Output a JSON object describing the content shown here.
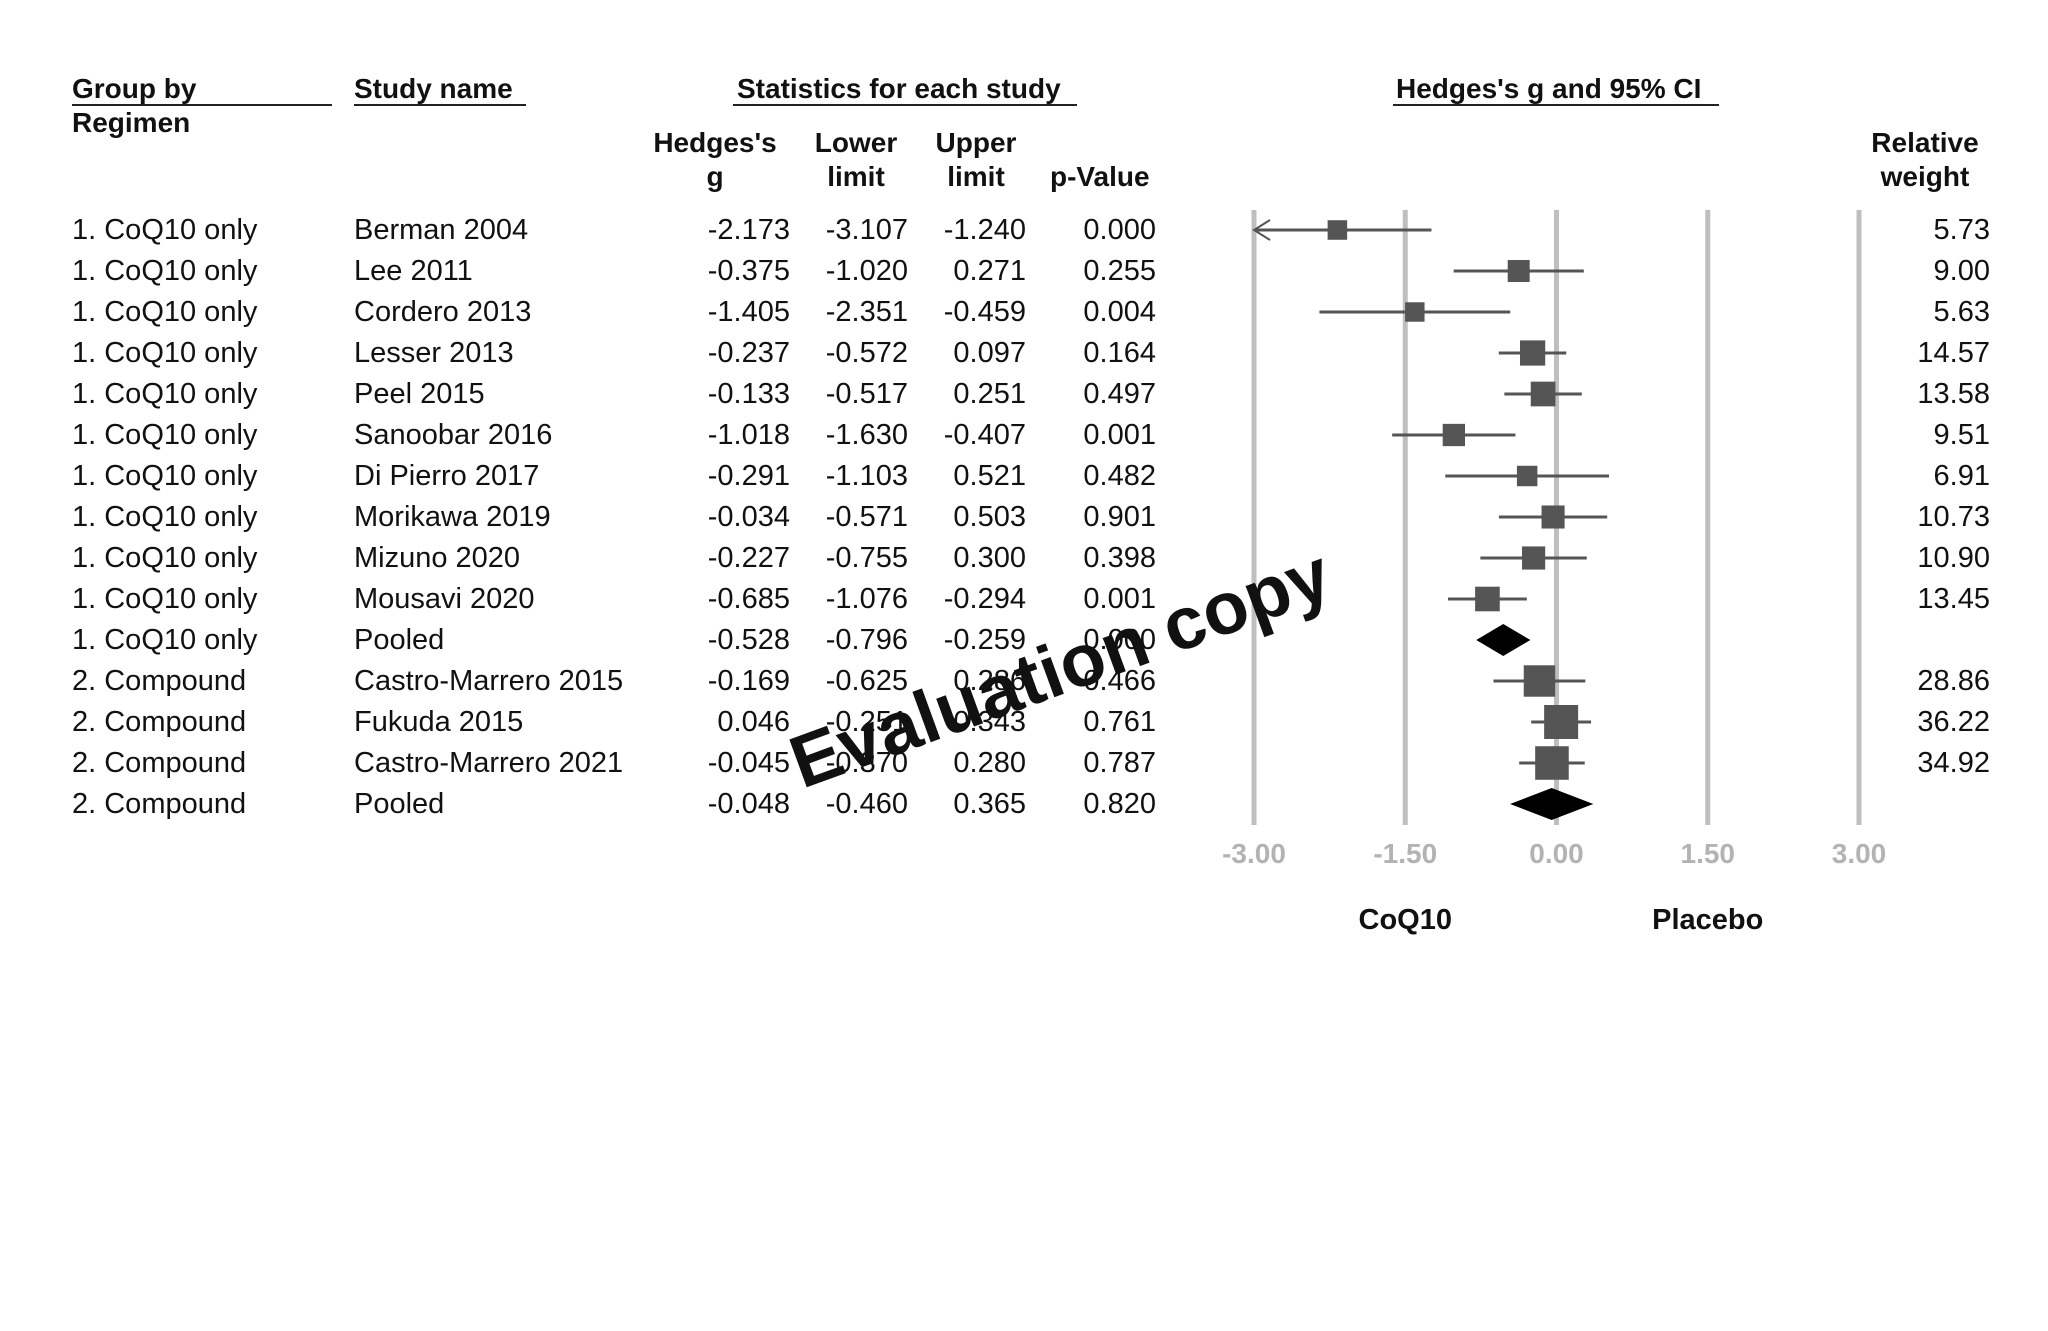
{
  "headers": {
    "group_by_line1": "Group by",
    "group_by_line2": "Regimen",
    "study_name": "Study name",
    "statistics": "Statistics for each study",
    "hedges_line1": "Hedges's",
    "hedges_line2": "g",
    "lower_line1": "Lower",
    "lower_line2": "limit",
    "upper_line1": "Upper",
    "upper_line2": "limit",
    "pvalue": "p-Value",
    "plot_title": "Hedges's g and 95% CI",
    "weight_line1": "Relative",
    "weight_line2": "weight"
  },
  "rows": [
    {
      "group": "1. CoQ10 only",
      "study": "Berman 2004",
      "g": "-2.173",
      "lower": "-3.107",
      "upper": "-1.240",
      "p": "0.000",
      "weight": "5.73"
    },
    {
      "group": "1. CoQ10 only",
      "study": "Lee 2011",
      "g": "-0.375",
      "lower": "-1.020",
      "upper": "0.271",
      "p": "0.255",
      "weight": "9.00"
    },
    {
      "group": "1. CoQ10 only",
      "study": "Cordero 2013",
      "g": "-1.405",
      "lower": "-2.351",
      "upper": "-0.459",
      "p": "0.004",
      "weight": "5.63"
    },
    {
      "group": "1. CoQ10 only",
      "study": "Lesser 2013",
      "g": "-0.237",
      "lower": "-0.572",
      "upper": "0.097",
      "p": "0.164",
      "weight": "14.57"
    },
    {
      "group": "1. CoQ10 only",
      "study": "Peel 2015",
      "g": "-0.133",
      "lower": "-0.517",
      "upper": "0.251",
      "p": "0.497",
      "weight": "13.58"
    },
    {
      "group": "1. CoQ10 only",
      "study": "Sanoobar 2016",
      "g": "-1.018",
      "lower": "-1.630",
      "upper": "-0.407",
      "p": "0.001",
      "weight": "9.51"
    },
    {
      "group": "1. CoQ10 only",
      "study": "Di Pierro 2017",
      "g": "-0.291",
      "lower": "-1.103",
      "upper": "0.521",
      "p": "0.482",
      "weight": "6.91"
    },
    {
      "group": "1. CoQ10 only",
      "study": "Morikawa 2019",
      "g": "-0.034",
      "lower": "-0.571",
      "upper": "0.503",
      "p": "0.901",
      "weight": "10.73"
    },
    {
      "group": "1. CoQ10 only",
      "study": "Mizuno 2020",
      "g": "-0.227",
      "lower": "-0.755",
      "upper": "0.300",
      "p": "0.398",
      "weight": "10.90"
    },
    {
      "group": "1. CoQ10 only",
      "study": "Mousavi 2020",
      "g": "-0.685",
      "lower": "-1.076",
      "upper": "-0.294",
      "p": "0.001",
      "weight": "13.45"
    },
    {
      "group": "1. CoQ10 only",
      "study": "Pooled",
      "g": "-0.528",
      "lower": "-0.796",
      "upper": "-0.259",
      "p": "0.000",
      "weight": ""
    },
    {
      "group": "2. Compound",
      "study": "Castro-Marrero 2015",
      "g": "-0.169",
      "lower": "-0.625",
      "upper": "0.286",
      "p": "0.466",
      "weight": "28.86"
    },
    {
      "group": "2. Compound",
      "study": "Fukuda 2015",
      "g": "0.046",
      "lower": "-0.251",
      "upper": "0.343",
      "p": "0.761",
      "weight": "36.22"
    },
    {
      "group": "2. Compound",
      "study": "Castro-Marrero 2021",
      "g": "-0.045",
      "lower": "-0.370",
      "upper": "0.280",
      "p": "0.787",
      "weight": "34.92"
    },
    {
      "group": "2. Compound",
      "study": "Pooled",
      "g": "-0.048",
      "lower": "-0.460",
      "upper": "0.365",
      "p": "0.820",
      "weight": ""
    }
  ],
  "chart_data": {
    "type": "forest",
    "title": "Hedges's g and 95% CI",
    "x_ticks": [
      "-3.00",
      "-1.50",
      "0.00",
      "1.50",
      "3.00"
    ],
    "xlim": [
      -3,
      3
    ],
    "favours_left": "CoQ10",
    "favours_right": "Placebo",
    "series": [
      {
        "name": "Berman 2004",
        "g": -2.173,
        "lower": -3.107,
        "upper": -1.24,
        "weight": 5.73,
        "pooled": false
      },
      {
        "name": "Lee 2011",
        "g": -0.375,
        "lower": -1.02,
        "upper": 0.271,
        "weight": 9.0,
        "pooled": false
      },
      {
        "name": "Cordero 2013",
        "g": -1.405,
        "lower": -2.351,
        "upper": -0.459,
        "weight": 5.63,
        "pooled": false
      },
      {
        "name": "Lesser 2013",
        "g": -0.237,
        "lower": -0.572,
        "upper": 0.097,
        "weight": 14.57,
        "pooled": false
      },
      {
        "name": "Peel 2015",
        "g": -0.133,
        "lower": -0.517,
        "upper": 0.251,
        "weight": 13.58,
        "pooled": false
      },
      {
        "name": "Sanoobar 2016",
        "g": -1.018,
        "lower": -1.63,
        "upper": -0.407,
        "weight": 9.51,
        "pooled": false
      },
      {
        "name": "Di Pierro 2017",
        "g": -0.291,
        "lower": -1.103,
        "upper": 0.521,
        "weight": 6.91,
        "pooled": false
      },
      {
        "name": "Morikawa 2019",
        "g": -0.034,
        "lower": -0.571,
        "upper": 0.503,
        "weight": 10.73,
        "pooled": false
      },
      {
        "name": "Mizuno 2020",
        "g": -0.227,
        "lower": -0.755,
        "upper": 0.3,
        "weight": 10.9,
        "pooled": false
      },
      {
        "name": "Mousavi 2020",
        "g": -0.685,
        "lower": -1.076,
        "upper": -0.294,
        "weight": 13.45,
        "pooled": false
      },
      {
        "name": "Pooled (CoQ10 only)",
        "g": -0.528,
        "lower": -0.796,
        "upper": -0.259,
        "weight": null,
        "pooled": true
      },
      {
        "name": "Castro-Marrero 2015",
        "g": -0.169,
        "lower": -0.625,
        "upper": 0.286,
        "weight": 28.86,
        "pooled": false
      },
      {
        "name": "Fukuda 2015",
        "g": 0.046,
        "lower": -0.251,
        "upper": 0.343,
        "weight": 36.22,
        "pooled": false
      },
      {
        "name": "Castro-Marrero 2021",
        "g": -0.045,
        "lower": -0.37,
        "upper": 0.28,
        "weight": 34.92,
        "pooled": false
      },
      {
        "name": "Pooled (Compound)",
        "g": -0.048,
        "lower": -0.46,
        "upper": 0.365,
        "weight": null,
        "pooled": true
      }
    ],
    "colors": {
      "marker": "#555555",
      "pooled": "#000000",
      "gridline": "#bfbfbf",
      "tick": "#b3b3b3"
    }
  },
  "watermark": "Evaluation copy"
}
